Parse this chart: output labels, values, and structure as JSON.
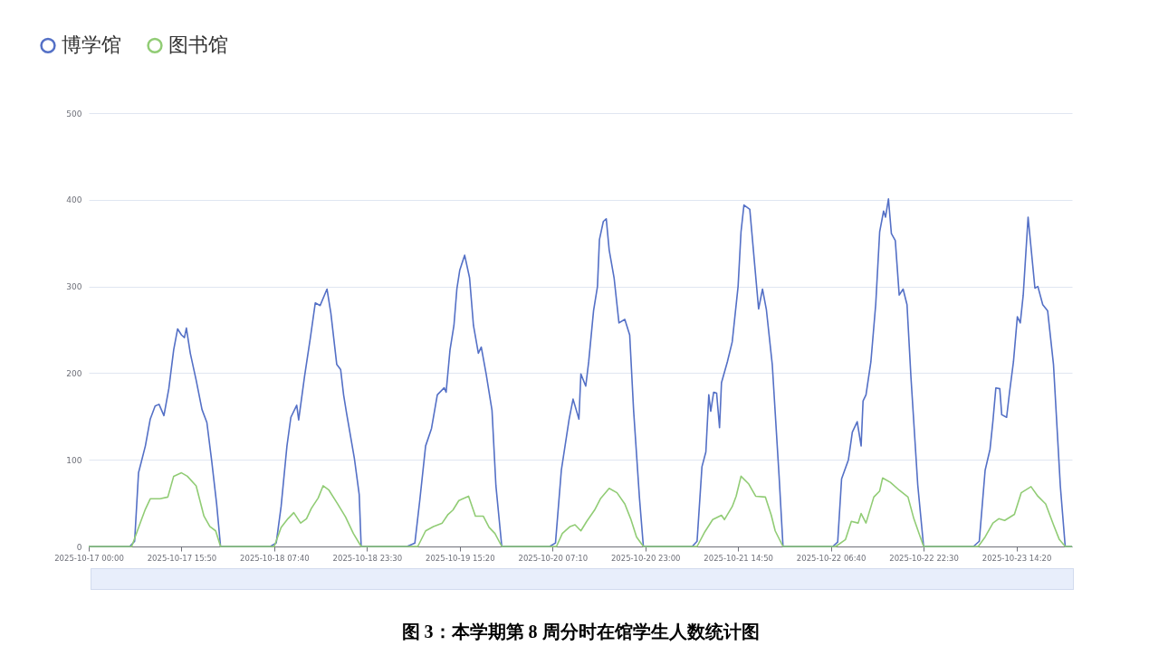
{
  "chart_data": {
    "type": "line",
    "title": "图 3：本学期第 8 周分时在馆学生人数统计图",
    "xlim": [
      "2025-10-17T00:00",
      "2025-10-23T23:50"
    ],
    "xticks": [
      {
        "value": "2025-10-17T00:00",
        "label": "2025-10-17 00:00"
      },
      {
        "value": "2025-10-17T15:50",
        "label": "2025-10-17 15:50"
      },
      {
        "value": "2025-10-18T07:40",
        "label": "2025-10-18 07:40"
      },
      {
        "value": "2025-10-18T23:30",
        "label": "2025-10-18 23:30"
      },
      {
        "value": "2025-10-19T15:20",
        "label": "2025-10-19 15:20"
      },
      {
        "value": "2025-10-20T07:10",
        "label": "2025-10-20 07:10"
      },
      {
        "value": "2025-10-20T23:00",
        "label": "2025-10-20 23:00"
      },
      {
        "value": "2025-10-21T14:50",
        "label": "2025-10-21 14:50"
      },
      {
        "value": "2025-10-22T06:40",
        "label": "2025-10-22 06:40"
      },
      {
        "value": "2025-10-22T22:30",
        "label": "2025-10-22 22:30"
      },
      {
        "value": "2025-10-23T14:20",
        "label": "2025-10-23 14:20"
      }
    ],
    "ylim": [
      0,
      500
    ],
    "yticks": [
      0,
      100,
      200,
      300,
      400,
      500
    ],
    "grid": "y",
    "legend": "top left",
    "series": [
      {
        "name": "博学馆",
        "color": "#5470c6",
        "x": [
          "2025-10-17T00:00",
          "2025-10-17T07:00",
          "2025-10-17T07:50",
          "2025-10-17T08:30",
          "2025-10-17T09:40",
          "2025-10-17T10:30",
          "2025-10-17T11:20",
          "2025-10-17T12:00",
          "2025-10-17T12:50",
          "2025-10-17T13:40",
          "2025-10-17T14:30",
          "2025-10-17T15:10",
          "2025-10-17T15:50",
          "2025-10-17T16:20",
          "2025-10-17T16:40",
          "2025-10-17T17:20",
          "2025-10-17T18:20",
          "2025-10-17T19:20",
          "2025-10-17T20:10",
          "2025-10-17T21:00",
          "2025-10-17T21:50",
          "2025-10-17T22:30",
          "2025-10-18T07:00",
          "2025-10-18T08:00",
          "2025-10-18T08:50",
          "2025-10-18T09:50",
          "2025-10-18T10:30",
          "2025-10-18T11:30",
          "2025-10-18T11:50",
          "2025-10-18T12:50",
          "2025-10-18T13:50",
          "2025-10-18T14:40",
          "2025-10-18T15:30",
          "2025-10-18T16:40",
          "2025-10-18T17:20",
          "2025-10-18T18:20",
          "2025-10-18T19:00",
          "2025-10-18T19:30",
          "2025-10-18T20:00",
          "2025-10-18T21:20",
          "2025-10-18T22:10",
          "2025-10-18T22:30",
          "2025-10-19T06:20",
          "2025-10-19T07:40",
          "2025-10-19T08:30",
          "2025-10-19T09:30",
          "2025-10-19T10:30",
          "2025-10-19T11:30",
          "2025-10-19T12:40",
          "2025-10-19T13:00",
          "2025-10-19T13:40",
          "2025-10-19T14:20",
          "2025-10-19T14:50",
          "2025-10-19T15:20",
          "2025-10-19T16:10",
          "2025-10-19T17:00",
          "2025-10-19T17:40",
          "2025-10-19T18:30",
          "2025-10-19T19:00",
          "2025-10-19T19:50",
          "2025-10-19T20:50",
          "2025-10-19T21:30",
          "2025-10-19T22:30",
          "2025-10-20T06:40",
          "2025-10-20T07:40",
          "2025-10-20T08:40",
          "2025-10-20T10:00",
          "2025-10-20T10:40",
          "2025-10-20T11:40",
          "2025-10-20T12:00",
          "2025-10-20T12:50",
          "2025-10-20T13:20",
          "2025-10-20T14:10",
          "2025-10-20T14:50",
          "2025-10-20T15:10",
          "2025-10-20T15:50",
          "2025-10-20T16:20",
          "2025-10-20T16:50",
          "2025-10-20T17:40",
          "2025-10-20T18:30",
          "2025-10-20T19:30",
          "2025-10-20T20:20",
          "2025-10-20T21:00",
          "2025-10-20T22:00",
          "2025-10-20T22:40",
          "2025-10-21T07:00",
          "2025-10-21T07:50",
          "2025-10-21T08:40",
          "2025-10-21T09:20",
          "2025-10-21T09:50",
          "2025-10-21T10:10",
          "2025-10-21T10:40",
          "2025-10-21T11:10",
          "2025-10-21T11:40",
          "2025-10-21T12:00",
          "2025-10-21T13:00",
          "2025-10-21T13:50",
          "2025-10-21T14:50",
          "2025-10-21T15:20",
          "2025-10-21T15:50",
          "2025-10-21T16:50",
          "2025-10-21T17:40",
          "2025-10-21T18:20",
          "2025-10-21T19:00",
          "2025-10-21T19:40",
          "2025-10-21T20:40",
          "2025-10-21T21:50",
          "2025-10-21T22:30",
          "2025-10-22T07:00",
          "2025-10-22T07:50",
          "2025-10-22T08:30",
          "2025-10-22T09:40",
          "2025-10-22T10:20",
          "2025-10-22T11:10",
          "2025-10-22T11:50",
          "2025-10-22T12:10",
          "2025-10-22T12:40",
          "2025-10-22T13:30",
          "2025-10-22T14:20",
          "2025-10-22T15:00",
          "2025-10-22T15:40",
          "2025-10-22T16:00",
          "2025-10-22T16:30",
          "2025-10-22T17:00",
          "2025-10-22T17:40",
          "2025-10-22T18:20",
          "2025-10-22T19:00",
          "2025-10-22T19:40",
          "2025-10-22T20:20",
          "2025-10-22T21:30",
          "2025-10-22T22:30",
          "2025-10-23T07:00",
          "2025-10-23T08:00",
          "2025-10-23T09:00",
          "2025-10-23T09:50",
          "2025-10-23T10:20",
          "2025-10-23T10:50",
          "2025-10-23T11:30",
          "2025-10-23T11:50",
          "2025-10-23T12:40",
          "2025-10-23T13:10",
          "2025-10-23T13:50",
          "2025-10-23T14:30",
          "2025-10-23T15:00",
          "2025-10-23T15:30",
          "2025-10-23T16:20",
          "2025-10-23T17:30",
          "2025-10-23T18:00",
          "2025-10-23T18:50",
          "2025-10-23T19:40",
          "2025-10-23T20:40",
          "2025-10-23T21:50",
          "2025-10-23T22:40",
          "2025-10-23T23:50"
        ],
        "values": [
          0,
          0,
          6,
          85,
          116,
          147,
          162,
          164,
          151,
          182,
          227,
          251,
          244,
          241,
          252,
          223,
          192,
          158,
          143,
          98,
          49,
          0,
          0,
          4,
          46,
          116,
          149,
          163,
          146,
          196,
          241,
          281,
          278,
          297,
          269,
          210,
          204,
          175,
          154,
          102,
          60,
          0,
          0,
          4,
          53,
          116,
          136,
          175,
          183,
          178,
          227,
          255,
          297,
          319,
          336,
          310,
          255,
          223,
          230,
          199,
          157,
          70,
          0,
          0,
          4,
          88,
          147,
          170,
          147,
          199,
          185,
          213,
          272,
          300,
          354,
          375,
          378,
          342,
          310,
          258,
          262,
          244,
          157,
          56,
          0,
          0,
          6,
          92,
          109,
          175,
          156,
          178,
          177,
          137,
          189,
          213,
          236,
          300,
          363,
          394,
          389,
          325,
          274,
          297,
          273,
          210,
          81,
          0,
          0,
          5,
          78,
          100,
          132,
          144,
          116,
          168,
          175,
          213,
          280,
          363,
          387,
          380,
          401,
          361,
          353,
          290,
          297,
          279,
          196,
          71,
          0,
          0,
          6,
          88,
          112,
          145,
          183,
          182,
          152,
          149,
          178,
          213,
          265,
          258,
          290,
          380,
          298,
          300,
          279,
          272,
          210,
          70,
          0,
          0
        ]
      },
      {
        "name": "图书馆",
        "color": "#91cc75",
        "x": [
          "2025-10-17T00:00",
          "2025-10-17T07:20",
          "2025-10-17T08:50",
          "2025-10-17T09:40",
          "2025-10-17T10:30",
          "2025-10-17T12:10",
          "2025-10-17T13:30",
          "2025-10-17T14:30",
          "2025-10-17T15:50",
          "2025-10-17T16:50",
          "2025-10-17T18:20",
          "2025-10-17T19:40",
          "2025-10-17T20:40",
          "2025-10-17T21:40",
          "2025-10-17T22:30",
          "2025-10-18T07:40",
          "2025-10-18T08:50",
          "2025-10-18T10:00",
          "2025-10-18T11:00",
          "2025-10-18T12:10",
          "2025-10-18T13:10",
          "2025-10-18T14:00",
          "2025-10-18T15:10",
          "2025-10-18T16:00",
          "2025-10-18T17:00",
          "2025-10-18T18:30",
          "2025-10-18T19:50",
          "2025-10-18T21:10",
          "2025-10-18T22:30",
          "2025-10-19T08:10",
          "2025-10-19T09:30",
          "2025-10-19T10:50",
          "2025-10-19T12:20",
          "2025-10-19T13:20",
          "2025-10-19T14:10",
          "2025-10-19T15:10",
          "2025-10-19T16:50",
          "2025-10-19T18:00",
          "2025-10-19T19:20",
          "2025-10-19T20:20",
          "2025-10-19T21:20",
          "2025-10-19T22:30",
          "2025-10-20T07:50",
          "2025-10-20T08:50",
          "2025-10-20T10:10",
          "2025-10-20T11:00",
          "2025-10-20T12:00",
          "2025-10-20T13:00",
          "2025-10-20T14:20",
          "2025-10-20T15:20",
          "2025-10-20T16:50",
          "2025-10-20T18:10",
          "2025-10-20T19:30",
          "2025-10-20T20:30",
          "2025-10-20T21:30",
          "2025-10-20T22:40",
          "2025-10-21T07:50",
          "2025-10-21T09:10",
          "2025-10-21T10:30",
          "2025-10-21T12:00",
          "2025-10-21T12:30",
          "2025-10-21T13:50",
          "2025-10-21T14:30",
          "2025-10-21T15:20",
          "2025-10-21T16:40",
          "2025-10-21T17:50",
          "2025-10-21T19:30",
          "2025-10-21T20:30",
          "2025-10-21T21:10",
          "2025-10-21T22:30",
          "2025-10-22T07:30",
          "2025-10-22T09:10",
          "2025-10-22T10:10",
          "2025-10-22T11:20",
          "2025-10-22T11:50",
          "2025-10-22T12:40",
          "2025-10-22T14:00",
          "2025-10-22T15:00",
          "2025-10-22T15:30",
          "2025-10-22T16:50",
          "2025-10-22T18:20",
          "2025-10-22T19:50",
          "2025-10-22T20:50",
          "2025-10-22T22:30",
          "2025-10-23T07:50",
          "2025-10-23T09:00",
          "2025-10-23T10:20",
          "2025-10-23T11:20",
          "2025-10-23T12:20",
          "2025-10-23T14:00",
          "2025-10-23T15:10",
          "2025-10-23T16:50",
          "2025-10-23T18:00",
          "2025-10-23T19:20",
          "2025-10-23T20:40",
          "2025-10-23T21:40",
          "2025-10-23T22:40",
          "2025-10-23T23:50"
        ],
        "values": [
          0,
          0,
          28,
          43,
          55,
          55,
          57,
          81,
          85,
          81,
          70,
          35,
          23,
          18,
          0,
          0,
          22,
          32,
          39,
          27,
          32,
          44,
          56,
          70,
          65,
          49,
          34,
          15,
          0,
          0,
          18,
          23,
          27,
          37,
          42,
          53,
          58,
          35,
          35,
          22,
          15,
          0,
          0,
          15,
          23,
          25,
          18,
          29,
          42,
          55,
          67,
          62,
          49,
          32,
          11,
          0,
          0,
          17,
          31,
          36,
          31,
          46,
          58,
          81,
          72,
          58,
          57,
          36,
          18,
          0,
          0,
          8,
          29,
          27,
          38,
          27,
          57,
          64,
          79,
          74,
          65,
          57,
          32,
          0,
          0,
          11,
          27,
          32,
          30,
          37,
          62,
          69,
          58,
          49,
          25,
          8,
          0,
          0
        ]
      }
    ]
  }
}
